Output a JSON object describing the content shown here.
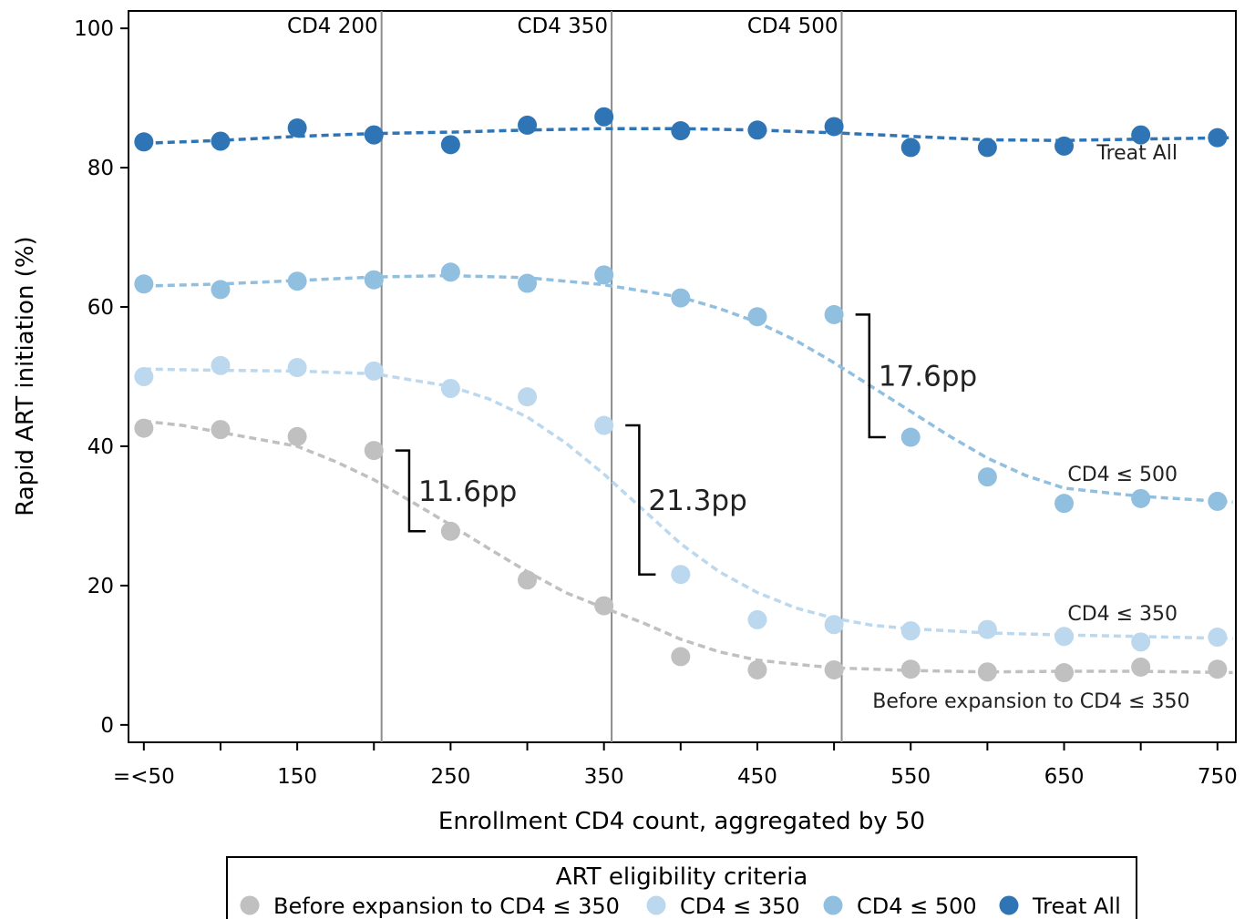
{
  "chart_data": {
    "type": "scatter",
    "xlabel": "Enrollment CD4 count, aggregated by 50",
    "ylabel": "Rapid ART initiation (%)",
    "x_tick_labels": [
      "=<50",
      "150",
      "250",
      "350",
      "450",
      "550",
      "650",
      "750"
    ],
    "x_tick_values": [
      50,
      150,
      250,
      350,
      450,
      550,
      650,
      750
    ],
    "y_ticks": [
      "0",
      "20",
      "40",
      "60",
      "80",
      "100"
    ],
    "y_tick_values": [
      0,
      20,
      40,
      60,
      80,
      100
    ],
    "xlim": [
      40,
      762
    ],
    "ylim": [
      -2.5,
      102.5
    ],
    "grid": false,
    "threshold_lines": [
      {
        "x": 205,
        "label": "CD4 200"
      },
      {
        "x": 355,
        "label": "CD4 350"
      },
      {
        "x": 505,
        "label": "CD4 500"
      }
    ],
    "x": [
      50,
      100,
      150,
      200,
      250,
      300,
      350,
      400,
      450,
      500,
      550,
      600,
      650,
      700,
      750
    ],
    "series": [
      {
        "name": "Before expansion to CD4 ≤ 350",
        "color": "#c0c0c0",
        "values": [
          42.6,
          42.4,
          41.4,
          39.4,
          27.8,
          20.8,
          17.1,
          9.8,
          7.9,
          7.9,
          8.0,
          7.6,
          7.5,
          8.3,
          8.0
        ],
        "fit": [
          [
            50,
            43.6
          ],
          [
            75,
            43.0
          ],
          [
            100,
            42.0
          ],
          [
            125,
            41.0
          ],
          [
            150,
            40.0
          ],
          [
            175,
            37.8
          ],
          [
            200,
            35.2
          ],
          [
            225,
            32.0
          ],
          [
            250,
            28.7
          ],
          [
            275,
            25.3
          ],
          [
            300,
            22.0
          ],
          [
            325,
            19.0
          ],
          [
            350,
            16.8
          ],
          [
            375,
            14.7
          ],
          [
            400,
            12.3
          ],
          [
            425,
            10.5
          ],
          [
            450,
            9.3
          ],
          [
            475,
            8.7
          ],
          [
            500,
            8.2
          ],
          [
            525,
            8.0
          ],
          [
            550,
            7.8
          ],
          [
            600,
            7.6
          ],
          [
            650,
            7.7
          ],
          [
            700,
            7.7
          ],
          [
            760,
            7.5
          ]
        ]
      },
      {
        "name": "CD4 ≤ 350",
        "color": "#bcd8ee",
        "values": [
          50.0,
          51.6,
          51.3,
          50.8,
          48.3,
          47.1,
          43.0,
          21.6,
          15.1,
          14.4,
          13.5,
          13.7,
          12.7,
          11.9,
          12.6
        ],
        "fit": [
          [
            50,
            51.1
          ],
          [
            75,
            51.0
          ],
          [
            100,
            50.9
          ],
          [
            150,
            50.8
          ],
          [
            200,
            50.4
          ],
          [
            250,
            48.6
          ],
          [
            275,
            46.8
          ],
          [
            300,
            44.2
          ],
          [
            325,
            40.5
          ],
          [
            350,
            36.0
          ],
          [
            375,
            31.0
          ],
          [
            400,
            26.0
          ],
          [
            425,
            22.0
          ],
          [
            450,
            19.0
          ],
          [
            475,
            16.8
          ],
          [
            500,
            15.3
          ],
          [
            525,
            14.3
          ],
          [
            550,
            13.8
          ],
          [
            600,
            13.2
          ],
          [
            650,
            12.9
          ],
          [
            700,
            12.7
          ],
          [
            760,
            12.4
          ]
        ]
      },
      {
        "name": "CD4 ≤ 500",
        "color": "#91bfe0",
        "values": [
          63.3,
          62.5,
          63.7,
          63.9,
          65.0,
          63.4,
          64.6,
          61.3,
          58.6,
          58.9,
          41.3,
          35.6,
          31.8,
          32.5,
          32.1
        ],
        "fit": [
          [
            50,
            63.0
          ],
          [
            100,
            63.3
          ],
          [
            150,
            63.8
          ],
          [
            200,
            64.3
          ],
          [
            250,
            64.5
          ],
          [
            300,
            64.2
          ],
          [
            350,
            63.2
          ],
          [
            400,
            61.4
          ],
          [
            425,
            59.8
          ],
          [
            450,
            57.8
          ],
          [
            475,
            55.2
          ],
          [
            500,
            52.0
          ],
          [
            525,
            48.5
          ],
          [
            550,
            45.0
          ],
          [
            575,
            41.5
          ],
          [
            600,
            38.3
          ],
          [
            625,
            35.8
          ],
          [
            650,
            34.0
          ],
          [
            700,
            32.8
          ],
          [
            760,
            32.0
          ]
        ]
      },
      {
        "name": "Treat All",
        "color": "#2f75b5",
        "values": [
          83.7,
          83.8,
          85.7,
          84.7,
          83.3,
          86.1,
          87.3,
          85.3,
          85.4,
          85.9,
          82.9,
          82.9,
          83.1,
          84.7,
          84.3
        ],
        "fit": [
          [
            50,
            83.5
          ],
          [
            100,
            83.9
          ],
          [
            150,
            84.5
          ],
          [
            200,
            84.9
          ],
          [
            250,
            85.1
          ],
          [
            300,
            85.4
          ],
          [
            350,
            85.6
          ],
          [
            400,
            85.6
          ],
          [
            450,
            85.4
          ],
          [
            500,
            85.0
          ],
          [
            550,
            84.5
          ],
          [
            600,
            84.0
          ],
          [
            650,
            83.9
          ],
          [
            700,
            84.1
          ],
          [
            760,
            84.3
          ]
        ]
      }
    ],
    "annotations": [
      {
        "label": "Treat All",
        "x": 724,
        "y": 81.2,
        "style": "small"
      },
      {
        "label": "CD4 ≤ 500",
        "x": 724,
        "y": 35.0,
        "style": "small"
      },
      {
        "label": "CD4 ≤ 350",
        "x": 724,
        "y": 15.0,
        "style": "small"
      },
      {
        "label": "Before expansion to CD4 ≤ 350",
        "x": 732,
        "y": 2.5,
        "style": "small"
      }
    ],
    "brackets": [
      {
        "label": "11.6pp",
        "x": 214,
        "x_tip": 223,
        "y_top": 39.4,
        "y_bottom": 27.8
      },
      {
        "label": "21.3pp",
        "x": 364,
        "x_tip": 373,
        "y_top": 43.0,
        "y_bottom": 21.6
      },
      {
        "label": "17.6pp",
        "x": 514,
        "x_tip": 523,
        "y_top": 58.9,
        "y_bottom": 41.3
      }
    ],
    "legend": {
      "title": "ART eligibility criteria",
      "position": "bottom",
      "entries": [
        "Before expansion to CD4 ≤ 350",
        "CD4 ≤ 350",
        "CD4 ≤ 500",
        "Treat All"
      ]
    }
  }
}
